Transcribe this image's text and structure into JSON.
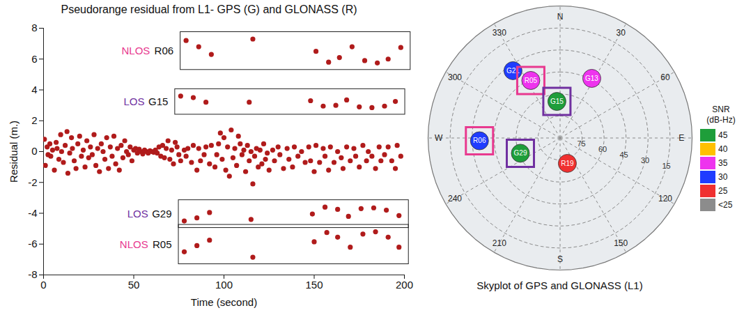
{
  "chart_data": [
    {
      "type": "scatter",
      "title": "Pseudorange residual from L1- GPS (G) and GLONASS (R)",
      "x_label": "Time (second)",
      "y_label": "Residual (m.)",
      "xlim": [
        0,
        200
      ],
      "ylim": [
        -8,
        8
      ],
      "xticks": [
        0,
        50,
        100,
        150,
        200
      ],
      "yticks": [
        -8,
        -6,
        -4,
        -2,
        0,
        2,
        4,
        6,
        8
      ],
      "grid": false,
      "color": "#b01b1b",
      "marker": "circle",
      "x": [
        0.5,
        1,
        2,
        2.5,
        3.5,
        4,
        5,
        6,
        7,
        7.5,
        8.5,
        9.5,
        10,
        11,
        12,
        13,
        13.5,
        14.5,
        15.5,
        16,
        17,
        18,
        19,
        20,
        21,
        22,
        23,
        24,
        25,
        26,
        27,
        28,
        29,
        30,
        31,
        32,
        33,
        34,
        35,
        36,
        37,
        38,
        39,
        40,
        41,
        42,
        43,
        44,
        45,
        46,
        47,
        48,
        49,
        50,
        51,
        52,
        53,
        54,
        55,
        56,
        57,
        58,
        59,
        60,
        61,
        62,
        63,
        64,
        65,
        66,
        67,
        68,
        69,
        70,
        71,
        72,
        73,
        74,
        75,
        76,
        78,
        79,
        80,
        82,
        83,
        85,
        86,
        87,
        89,
        90,
        92,
        93,
        95,
        96,
        97,
        98,
        99,
        100,
        101,
        102,
        103,
        104,
        105,
        106,
        107,
        108,
        109,
        110,
        111,
        112,
        113,
        114,
        115,
        116,
        117,
        118,
        119,
        120,
        121,
        122,
        123,
        124,
        125,
        127,
        128,
        130,
        131,
        133,
        135,
        136,
        138,
        139,
        141,
        143,
        145,
        147,
        148,
        150,
        151,
        153,
        155,
        156,
        158,
        159,
        161,
        163,
        165,
        166,
        168,
        170,
        172,
        173,
        175,
        177,
        179,
        180,
        182,
        184,
        186,
        187,
        189,
        191,
        193,
        195,
        196,
        198
      ],
      "y": [
        0.8,
        -0.9,
        0.3,
        -0.2,
        0.5,
        -0.3,
        0.1,
        -1.2,
        0.6,
        0.2,
        -0.5,
        1.1,
        0,
        -0.7,
        0.4,
        1.3,
        -1.4,
        -0.1,
        0.9,
        0.2,
        -0.6,
        -1.1,
        0.5,
        1,
        -0.3,
        0.1,
        -1,
        0.7,
        -0.4,
        0.3,
        -0.2,
        1.1,
        -0.9,
        0.2,
        -1.3,
        0.5,
        0,
        -0.5,
        0.9,
        -1.1,
        0.3,
        -0.3,
        1,
        -0.8,
        0.2,
        -1.2,
        0.4,
        -0.4,
        0.7,
        0,
        -0.2,
        0.3,
        -0.6,
        0.1,
        0.2,
        -0.1,
        0.15,
        0,
        -0.15,
        0.1,
        0,
        -0.1,
        0.05,
        0,
        -0.05,
        0.1,
        -0.1,
        0.3,
        -0.3,
        0.4,
        -0.4,
        0.2,
        0.7,
        -0.5,
        0.1,
        -0.8,
        0.6,
        0.3,
        -0.2,
        -0.6,
        0.1,
        -0.3,
        0.2,
        -0.7,
        0.4,
        -1.2,
        0.2,
        -0.6,
        -0.2,
        0.3,
        -0.8,
        0.4,
        -1,
        -0.2,
        0.5,
        1.2,
        -0.5,
        0.9,
        -1.2,
        0.3,
        -1.6,
        1.4,
        -0.4,
        0.2,
        -0.9,
        1,
        0.5,
        -0.2,
        0.1,
        -1.3,
        0.4,
        -0.6,
        0,
        -2.1,
        -0.3,
        0.2,
        -1,
        0.1,
        -0.8,
        0.5,
        -0.5,
        -0.1,
        -1.2,
        0.1,
        -0.6,
        0.3,
        -0.2,
        -1.1,
        0.2,
        -0.5,
        -1,
        0.3,
        -0.3,
        0,
        -0.7,
        0.3,
        -0.6,
        -1.3,
        0.4,
        -0.7,
        0.2,
        -0.3,
        -1.2,
        0.3,
        -0.7,
        0,
        -0.4,
        -1.1,
        0.3,
        -0.6,
        0.2,
        -0.3,
        -1,
        0.4,
        -0.6,
        0,
        -0.3,
        -1.1,
        0.3,
        -0.6,
        -0.2,
        0.3,
        -0.6,
        -1.1,
        0.4,
        -0.3
      ],
      "series": [
        {
          "name": "R06",
          "status": "NLOS",
          "color": "#e8398f",
          "x": [
            79,
            86,
            93,
            116,
            151,
            158,
            164,
            171,
            178,
            185,
            191,
            198
          ],
          "y": [
            7.2,
            6.8,
            6.3,
            7.3,
            6.5,
            5.8,
            6.1,
            6.8,
            5.9,
            5.75,
            6.0,
            6.75
          ]
        },
        {
          "name": "G15",
          "status": "LOS",
          "color": "#7030a0",
          "x": [
            76,
            83,
            90,
            114,
            148,
            155,
            162,
            168,
            175,
            182,
            189,
            195
          ],
          "y": [
            3.6,
            3.5,
            3.2,
            3.2,
            3.3,
            2.95,
            3.0,
            3.35,
            2.9,
            2.85,
            2.95,
            3.25
          ]
        },
        {
          "name": "G29",
          "status": "LOS",
          "color": "#7030a0",
          "x": [
            78,
            85,
            92,
            115,
            149,
            156,
            163,
            169,
            176,
            183,
            190,
            197
          ],
          "y": [
            -4.5,
            -4.3,
            -3.95,
            -4.4,
            -4.05,
            -3.6,
            -3.75,
            -4.2,
            -3.7,
            -3.65,
            -3.8,
            -4.15
          ]
        },
        {
          "name": "R05",
          "status": "NLOS",
          "color": "#e8398f",
          "x": [
            78,
            85,
            92,
            116,
            150,
            157,
            163,
            170,
            177,
            184,
            191,
            197
          ],
          "y": [
            -6.5,
            -6.1,
            -5.75,
            -6.85,
            -5.85,
            -5.25,
            -5.55,
            -6.2,
            -5.35,
            -5.2,
            -5.55,
            -6.2
          ]
        }
      ]
    },
    {
      "type": "skyplot",
      "caption": "Skyplot of GPS and GLONASS (L1)",
      "elevation_lim": [
        0,
        90
      ],
      "elevation_ticks": [
        15,
        30,
        45,
        60,
        75
      ],
      "azimuth_ticks": [
        {
          "value": 0,
          "label": "N"
        },
        30,
        60,
        {
          "value": 90,
          "label": "E"
        },
        120,
        150,
        {
          "value": 180,
          "label": "S"
        },
        210,
        240,
        {
          "value": 270,
          "label": "W"
        },
        300,
        330
      ],
      "satellites": [
        {
          "name": "G21",
          "azimuth": 325,
          "elevation": 34,
          "snr": 30
        },
        {
          "name": "R05",
          "azimuth": 333,
          "elevation": 46,
          "snr": 35
        },
        {
          "name": "G13",
          "azimuth": 28,
          "elevation": 44,
          "snr": 35
        },
        {
          "name": "G15",
          "azimuth": 355,
          "elevation": 65,
          "snr": 45
        },
        {
          "name": "R06",
          "azimuth": 268,
          "elevation": 35,
          "snr": 30
        },
        {
          "name": "G29",
          "azimuth": 249,
          "elevation": 61,
          "snr": 45
        },
        {
          "name": "R19",
          "azimuth": 164,
          "elevation": 72,
          "snr": 25
        }
      ],
      "legend": "right",
      "legend_title": "SNR",
      "legend_unit": "(dB-Hz)",
      "legend_items": [
        {
          "label": "45",
          "color": "#1e9e3a"
        },
        {
          "label": "40",
          "color": "#ffc000"
        },
        {
          "label": "35",
          "color": "#ee33ee"
        },
        {
          "label": "30",
          "color": "#1f3cff"
        },
        {
          "label": "25",
          "color": "#f03030"
        },
        {
          "label": "<25",
          "color": "#8c8c8c"
        }
      ]
    }
  ]
}
